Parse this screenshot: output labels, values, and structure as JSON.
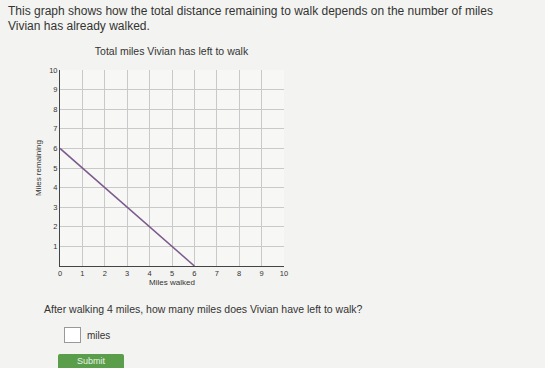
{
  "page": {
    "prompt": [
      "This graph shows how the total distance remaining to walk depends on the number of miles",
      "Vivian has already walked."
    ],
    "question": "After walking 4 miles, how many miles does Vivian have left to walk?",
    "unit": "miles",
    "button": "Submit"
  },
  "chart_data": {
    "type": "line",
    "title": "Total miles Vivian has left to walk",
    "xlabel": "Miles walked",
    "ylabel": "Miles remaining",
    "x": [
      0,
      6
    ],
    "values": [
      6,
      0
    ],
    "color": "#7b5a8c",
    "xlim": [
      0,
      10
    ],
    "xticks": [
      0,
      1,
      2,
      3,
      4,
      5,
      6,
      7,
      8,
      9,
      10
    ],
    "ylim": [
      0,
      10
    ],
    "yticks": [
      1,
      2,
      3,
      4,
      5,
      6,
      7,
      8,
      9,
      10
    ],
    "grid": true
  }
}
